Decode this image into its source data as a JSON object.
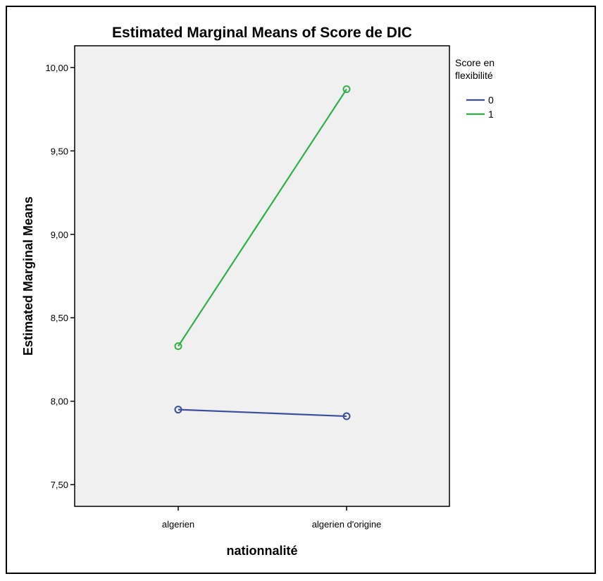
{
  "chart_data": {
    "type": "line",
    "title": "Estimated Marginal Means of Score de DIC",
    "xlabel": "nationnalité",
    "ylabel": "Estimated Marginal Means",
    "categories": [
      "algerien",
      "algerien d'origine"
    ],
    "ylim": [
      7.37,
      10.13
    ],
    "yticks": [
      7.5,
      8.0,
      8.5,
      9.0,
      9.5,
      10.0
    ],
    "ytick_labels": [
      "7,50",
      "8,00",
      "8,50",
      "9,00",
      "9,50",
      "10,00"
    ],
    "legend_title": "Score en flexibilité",
    "legend_position": "right",
    "grid": false,
    "series": [
      {
        "name": "0",
        "values": [
          7.95,
          7.91
        ],
        "color": "#3b4f9a"
      },
      {
        "name": "1",
        "values": [
          8.33,
          9.87
        ],
        "color": "#2fb04a"
      }
    ]
  },
  "colors": {
    "plot_background": "#f0f0f0",
    "axis": "#000000"
  }
}
